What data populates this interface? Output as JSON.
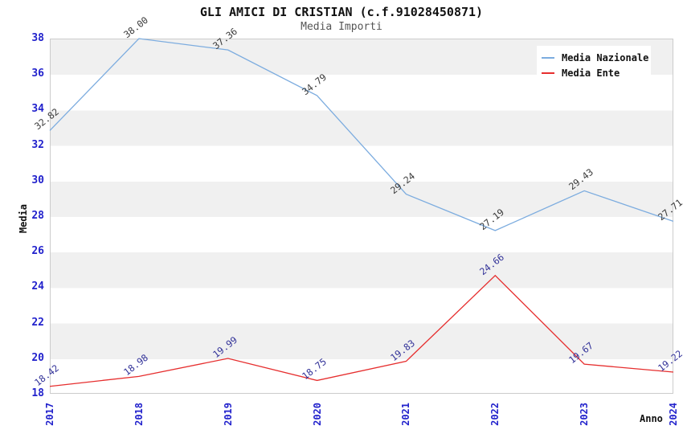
{
  "header": {
    "title": "GLI AMICI DI CRISTIAN (c.f.91028450871)",
    "subtitle": "Media Importi"
  },
  "chart_data": {
    "type": "line",
    "title": "GLI AMICI DI CRISTIAN (c.f.91028450871)",
    "subtitle": "Media Importi",
    "xlabel": "Anno",
    "ylabel": "Media",
    "categories": [
      "2017",
      "2018",
      "2019",
      "2020",
      "2021",
      "2022",
      "2023",
      "2024"
    ],
    "series": [
      {
        "name": "Media Nazionale",
        "color": "#7cacdf",
        "label_color": "#3c3c3c",
        "values": [
          32.82,
          38.0,
          37.36,
          34.79,
          29.24,
          27.19,
          29.43,
          27.71
        ],
        "labels": [
          "32.82",
          "38.00",
          "37.36",
          "34.79",
          "29.24",
          "27.19",
          "29.43",
          "27.71"
        ]
      },
      {
        "name": "Media Ente",
        "color": "#e62e2e",
        "label_color": "#333399",
        "values": [
          18.42,
          18.98,
          19.99,
          18.75,
          19.83,
          24.66,
          19.67,
          19.22
        ],
        "labels": [
          "18.42",
          "18.98",
          "19.99",
          "18.75",
          "19.83",
          "24.66",
          "19.67",
          "19.22"
        ]
      }
    ],
    "ylim": [
      18,
      38
    ],
    "yticks": [
      18,
      20,
      22,
      24,
      26,
      28,
      30,
      32,
      34,
      36,
      38
    ],
    "grid": "horizontal-bands",
    "legend_position": "top-right",
    "colors": {
      "axis_tick_label": "#2222cc",
      "band": "#f0f0f0",
      "plot_border": "#cccccc",
      "background": "#ffffff"
    }
  }
}
